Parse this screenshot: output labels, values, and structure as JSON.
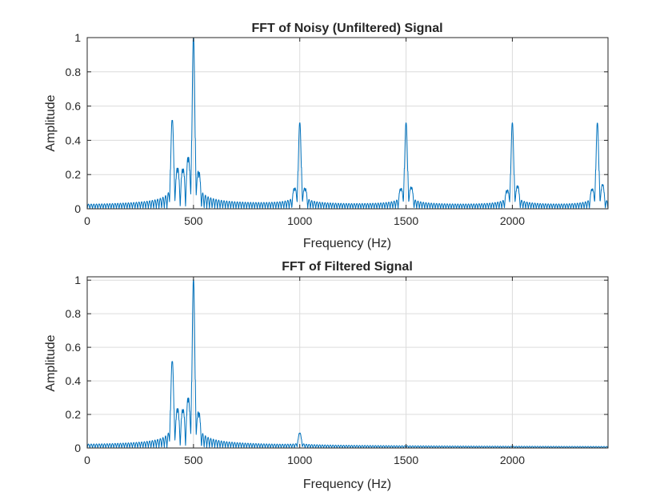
{
  "figure": {
    "background": "#ffffff",
    "line_color": "#0072bd"
  },
  "chart_data": [
    {
      "type": "line",
      "title": "FFT of Noisy (Unfiltered) Signal",
      "xlabel": "Frequency (Hz)",
      "ylabel": "Amplitude",
      "xlim": [
        0,
        2450
      ],
      "ylim": [
        0,
        1
      ],
      "xticks": [
        0,
        500,
        1000,
        1500,
        2000
      ],
      "xtick_labels": [
        "0",
        "500",
        "1000",
        "1500",
        "2000"
      ],
      "yticks": [
        0,
        0.2,
        0.4,
        0.6,
        0.8,
        1
      ],
      "ytick_labels": [
        "0",
        "0.2",
        "0.4",
        "0.6",
        "0.8",
        "1"
      ],
      "grid": true,
      "peaks": [
        {
          "freq": 400,
          "amp": 0.51
        },
        {
          "freq": 500,
          "amp": 1.0
        },
        {
          "freq": 1000,
          "amp": 0.5
        },
        {
          "freq": 1500,
          "amp": 0.5
        },
        {
          "freq": 2000,
          "amp": 0.5
        },
        {
          "freq": 2400,
          "amp": 0.5
        }
      ],
      "side_lobes": [
        {
          "freq": 425,
          "amp": 0.21
        },
        {
          "freq": 450,
          "amp": 0.2
        },
        {
          "freq": 475,
          "amp": 0.27
        },
        {
          "freq": 525,
          "amp": 0.18
        },
        {
          "freq": 975,
          "amp": 0.1
        },
        {
          "freq": 1025,
          "amp": 0.1
        },
        {
          "freq": 1475,
          "amp": 0.1
        },
        {
          "freq": 1525,
          "amp": 0.11
        },
        {
          "freq": 1975,
          "amp": 0.09
        },
        {
          "freq": 2025,
          "amp": 0.12
        },
        {
          "freq": 2375,
          "amp": 0.1
        },
        {
          "freq": 2425,
          "amp": 0.13
        }
      ],
      "lobe_spacing_hz": 12.5
    },
    {
      "type": "line",
      "title": "FFT of Filtered Signal",
      "xlabel": "Frequency (Hz)",
      "ylabel": "Amplitude",
      "xlim": [
        0,
        2450
      ],
      "ylim": [
        0,
        1.02
      ],
      "xticks": [
        0,
        500,
        1000,
        1500,
        2000
      ],
      "xtick_labels": [
        "0",
        "500",
        "1000",
        "1500",
        "2000"
      ],
      "yticks": [
        0,
        0.2,
        0.4,
        0.6,
        0.8,
        1
      ],
      "ytick_labels": [
        "0",
        "0.2",
        "0.4",
        "0.6",
        "0.8",
        "1"
      ],
      "grid": true,
      "peaks": [
        {
          "freq": 400,
          "amp": 0.51
        },
        {
          "freq": 500,
          "amp": 1.0
        },
        {
          "freq": 1000,
          "amp": 0.085
        }
      ],
      "side_lobes": [
        {
          "freq": 425,
          "amp": 0.21
        },
        {
          "freq": 450,
          "amp": 0.2
        },
        {
          "freq": 475,
          "amp": 0.27
        },
        {
          "freq": 525,
          "amp": 0.18
        }
      ],
      "lobe_spacing_hz": 12.5
    }
  ]
}
